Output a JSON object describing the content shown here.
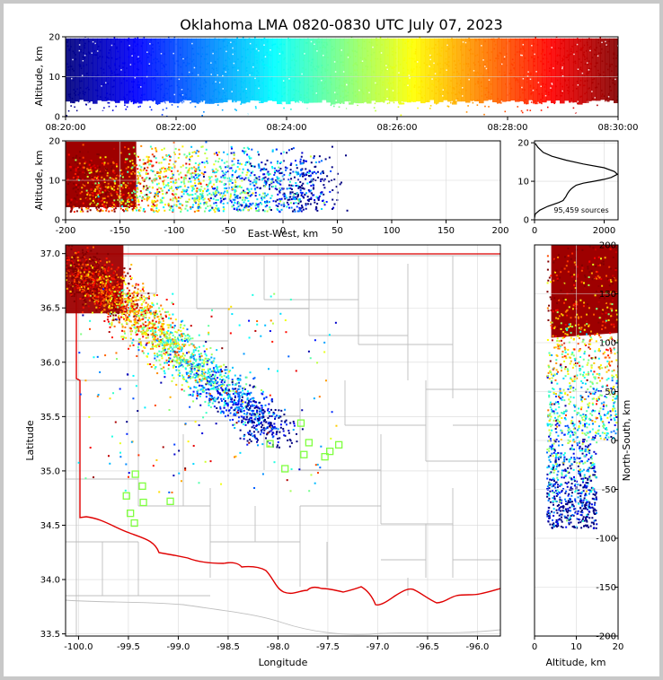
{
  "figure": {
    "title": "Oklahoma LMA 0820-0830 UTC July 07, 2023"
  },
  "chart_data": [
    {
      "id": "time-height",
      "type": "scatter",
      "xlabel": "",
      "ylabel": "Altitude, km",
      "x_ticks": [
        "08:20:00",
        "08:22:00",
        "08:24:00",
        "08:26:00",
        "08:28:00",
        "08:30:00"
      ],
      "x_range": [
        "08:20:00",
        "08:30:00"
      ],
      "y_ticks": [
        0,
        10,
        20
      ],
      "ylim": [
        0,
        20
      ],
      "colormap": "jet",
      "color_by": "time",
      "grid": true,
      "density_profile": [
        {
          "alt_km": 1,
          "rel_density": 0.15
        },
        {
          "alt_km": 3,
          "rel_density": 0.7
        },
        {
          "alt_km": 5,
          "rel_density": 1.0
        },
        {
          "alt_km": 8,
          "rel_density": 0.85
        },
        {
          "alt_km": 12,
          "rel_density": 1.0
        },
        {
          "alt_km": 16,
          "rel_density": 0.85
        },
        {
          "alt_km": 19,
          "rel_density": 0.6
        }
      ]
    },
    {
      "id": "ew-altitude",
      "type": "scatter",
      "xlabel": "East-West, km",
      "ylabel": "Altitude, km",
      "x_ticks": [
        -200,
        -150,
        -100,
        -50,
        0,
        50,
        100,
        150,
        200
      ],
      "xlim": [
        -200,
        200
      ],
      "y_ticks": [
        0,
        10,
        20
      ],
      "ylim": [
        0,
        20
      ],
      "colormap": "jet",
      "color_by": "time",
      "grid": true
    },
    {
      "id": "altitude-histogram",
      "type": "line",
      "text": "95,459 sources",
      "x_ticks": [
        0,
        2000
      ],
      "xlim": [
        0,
        2400
      ],
      "y_ticks": [
        0,
        10,
        20
      ],
      "ylim": [
        0,
        20.5
      ],
      "x": [
        0,
        20,
        150,
        380,
        700,
        820,
        860,
        900,
        930,
        960,
        1000,
        1050,
        1120,
        1200,
        1400,
        1700,
        2000,
        2200,
        2380,
        2300,
        2000,
        1400,
        900,
        500,
        250,
        100,
        20
      ],
      "y": [
        0.5,
        1.5,
        2.5,
        3.5,
        4.5,
        5.0,
        5.5,
        6.0,
        6.5,
        7.0,
        7.5,
        8.0,
        8.5,
        9.0,
        9.5,
        10.0,
        10.5,
        11.0,
        11.8,
        12.5,
        13.5,
        14.5,
        15.5,
        16.5,
        17.5,
        18.8,
        19.8
      ]
    },
    {
      "id": "plan-view",
      "type": "scatter",
      "xlabel": "Longitude",
      "ylabel": "Latitude",
      "x_ticks": [
        "-100.0",
        "-99.5",
        "-99.0",
        "-98.5",
        "-98.0",
        "-97.5",
        "-97.0",
        "-96.5",
        "-96.0"
      ],
      "xlim": [
        -100.13,
        -95.77
      ],
      "y_ticks": [
        "33.5",
        "34.0",
        "34.5",
        "35.0",
        "35.5",
        "36.0",
        "36.5",
        "37.0"
      ],
      "ylim": [
        33.48,
        37.08
      ],
      "colormap": "jet",
      "color_by": "time",
      "grid": true,
      "stations": [
        {
          "lon": -99.52,
          "lat": 34.77
        },
        {
          "lon": -99.48,
          "lat": 34.61
        },
        {
          "lon": -99.44,
          "lat": 34.52
        },
        {
          "lon": -99.36,
          "lat": 34.86
        },
        {
          "lon": -99.35,
          "lat": 34.71
        },
        {
          "lon": -99.43,
          "lat": 34.97
        },
        {
          "lon": -99.08,
          "lat": 34.72
        },
        {
          "lon": -98.08,
          "lat": 35.25
        },
        {
          "lon": -97.93,
          "lat": 35.02
        },
        {
          "lon": -97.77,
          "lat": 35.44
        },
        {
          "lon": -97.74,
          "lat": 35.15
        },
        {
          "lon": -97.69,
          "lat": 35.26
        },
        {
          "lon": -97.53,
          "lat": 35.13
        },
        {
          "lon": -97.48,
          "lat": 35.18
        },
        {
          "lon": -97.39,
          "lat": 35.24
        }
      ],
      "storm_track": [
        {
          "lon": -100.0,
          "lat": 36.85
        },
        {
          "lon": -99.5,
          "lat": 36.5
        },
        {
          "lon": -99.0,
          "lat": 36.1
        },
        {
          "lon": -98.5,
          "lat": 35.7
        },
        {
          "lon": -98.0,
          "lat": 35.35
        }
      ]
    },
    {
      "id": "altitude-ns",
      "type": "scatter",
      "xlabel": "Altitude, km",
      "ylabel": "North-South, km",
      "x_ticks": [
        0,
        10,
        20
      ],
      "xlim": [
        0,
        20
      ],
      "y_ticks": [
        -200,
        -150,
        -100,
        -50,
        0,
        50,
        100,
        150,
        200
      ],
      "ylim": [
        -200,
        200
      ],
      "colormap": "jet",
      "color_by": "time",
      "grid": true
    }
  ]
}
